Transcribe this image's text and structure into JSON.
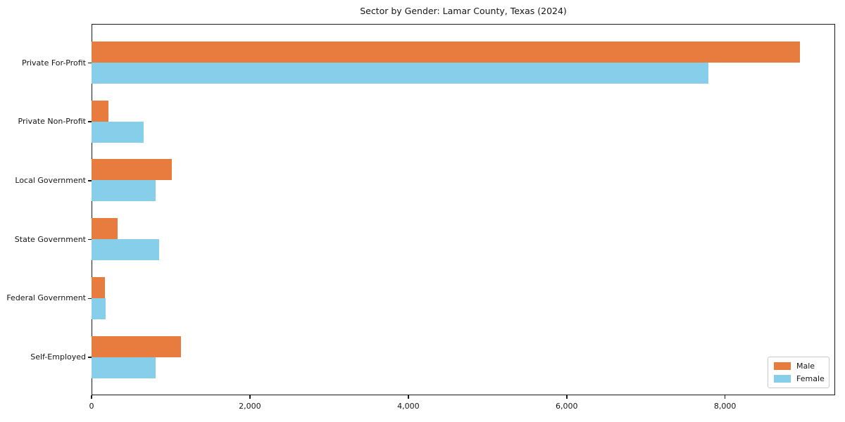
{
  "chart_data": {
    "type": "bar",
    "orientation": "horizontal",
    "title": "Sector by Gender: Lamar County, Texas (2024)",
    "categories": [
      "Private For-Profit",
      "Private Non-Profit",
      "Local Government",
      "State Government",
      "Federal Government",
      "Self-Employed"
    ],
    "series": [
      {
        "name": "Male",
        "color": "#e87c3e",
        "values": [
          8950,
          215,
          1020,
          330,
          170,
          1130
        ]
      },
      {
        "name": "Female",
        "color": "#87ceeb",
        "values": [
          7790,
          660,
          815,
          855,
          185,
          815
        ]
      }
    ],
    "xlabel": "",
    "ylabel": "",
    "xlim": [
      0,
      9390
    ],
    "xticks": [
      0,
      2000,
      4000,
      6000,
      8000
    ],
    "xtick_labels": [
      "0",
      "2,000",
      "4,000",
      "6,000",
      "8,000"
    ],
    "grid": false,
    "legend_position": "lower right",
    "frame": true,
    "colors": {
      "male": "#e87c3e",
      "female": "#87ceeb",
      "axis": "#1a1a1a",
      "text": "#151515",
      "background": "#ffffff"
    }
  }
}
